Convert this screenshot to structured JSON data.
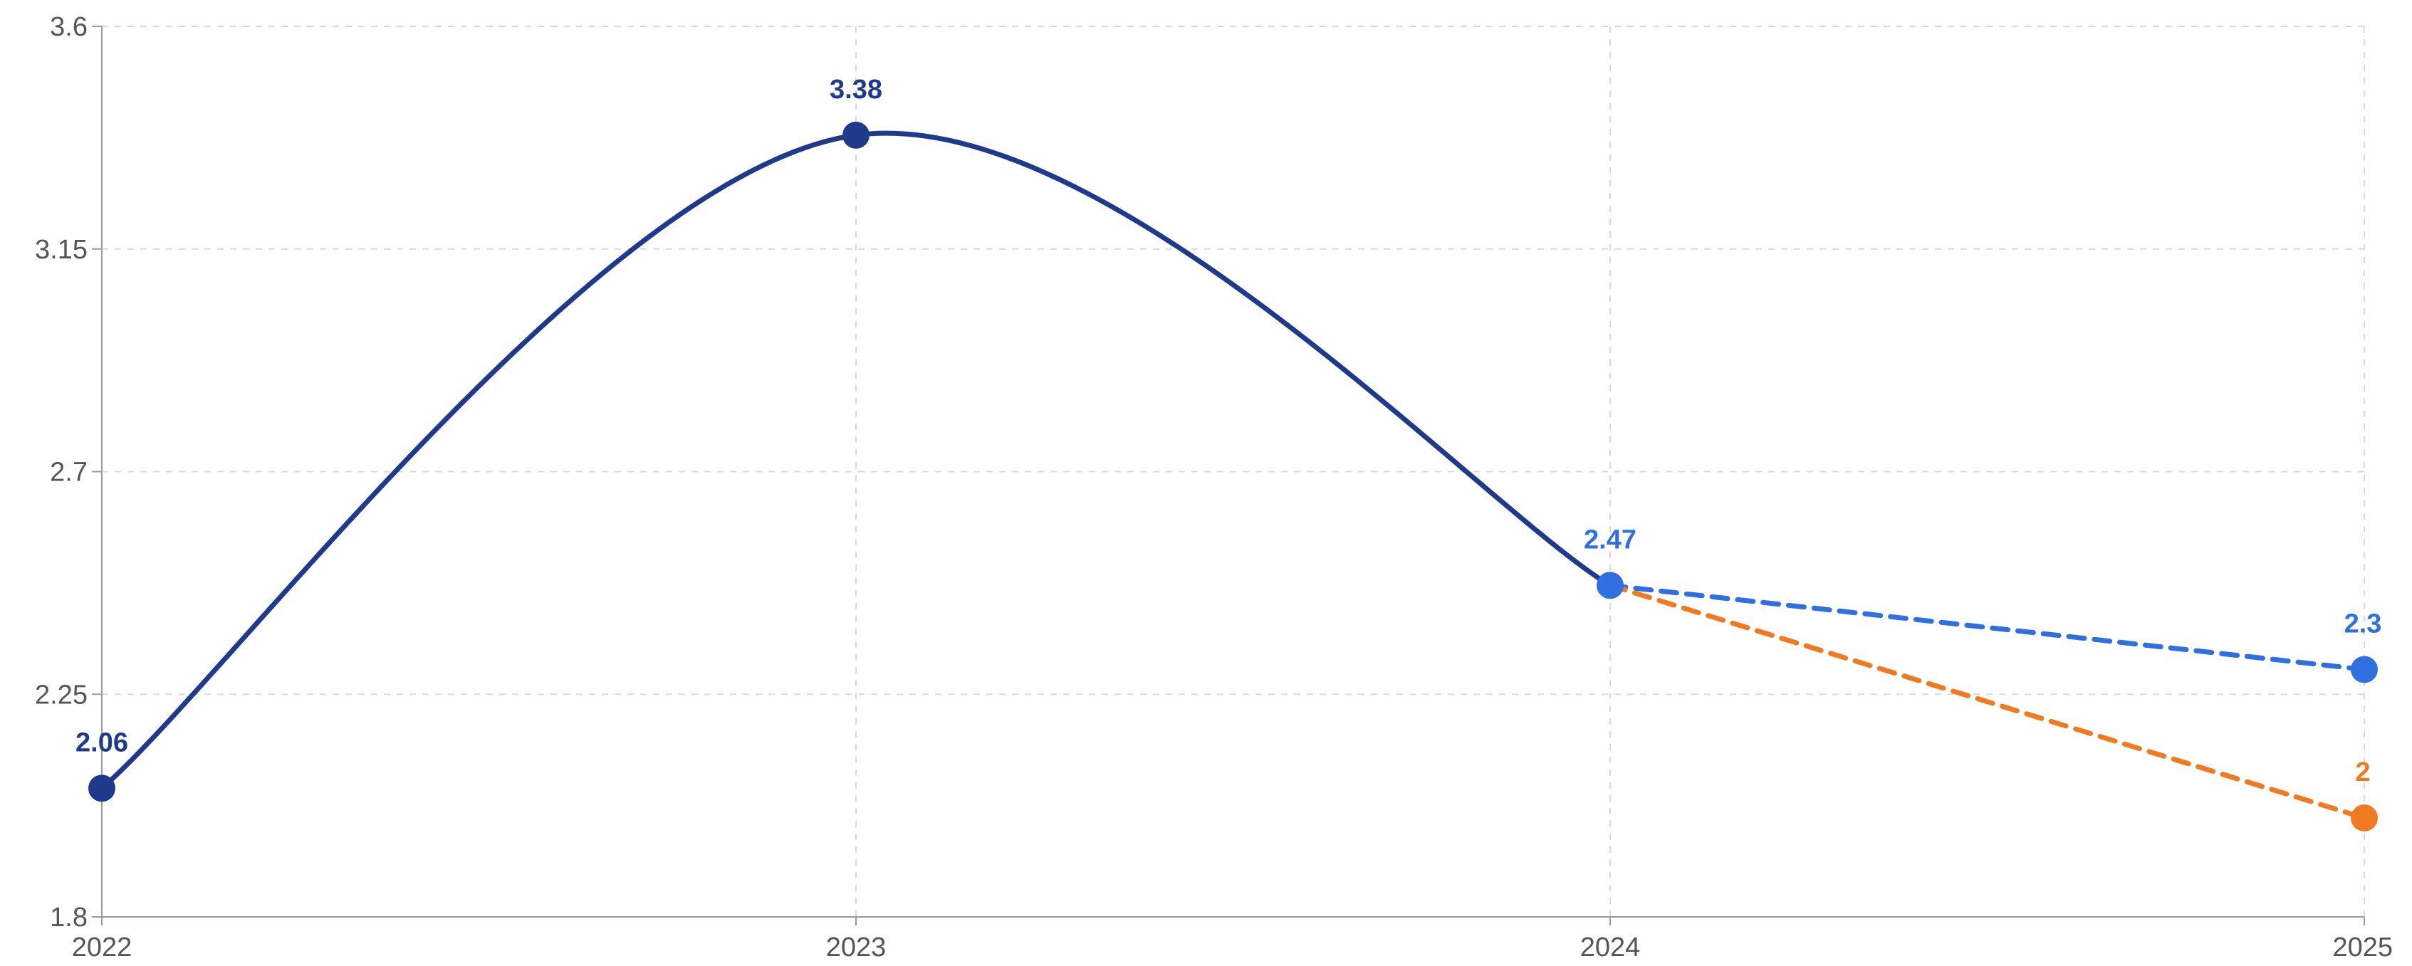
{
  "chart_data": {
    "type": "line",
    "title": "",
    "xlabel": "",
    "ylabel": "",
    "x": [
      "2022",
      "2023",
      "2024",
      "2025"
    ],
    "ylim": [
      1.8,
      3.6
    ],
    "yticks": [
      "1.8",
      "2.25",
      "2.7",
      "3.15",
      "3.6"
    ],
    "grid": true,
    "series": [
      {
        "key": "actual",
        "values": [
          2.06,
          3.38,
          2.47,
          null
        ],
        "labels": [
          "2.06",
          "3.38",
          "2.47",
          ""
        ],
        "color": "#1f3a8a",
        "line_style": "solid",
        "smooth": true
      },
      {
        "key": "forecast_high",
        "values": [
          null,
          null,
          2.47,
          2.3
        ],
        "labels": [
          "",
          "",
          "",
          "2.3"
        ],
        "color": "#2f6fe0",
        "line_style": "dashed",
        "smooth": false
      },
      {
        "key": "forecast_low",
        "values": [
          null,
          null,
          2.47,
          2.0
        ],
        "labels": [
          "",
          "",
          "",
          "2"
        ],
        "color": "#f07a22",
        "line_style": "dashed",
        "smooth": false
      }
    ],
    "highlight_point": {
      "series": "actual",
      "index": 2,
      "color": "#2f6fe0"
    }
  }
}
